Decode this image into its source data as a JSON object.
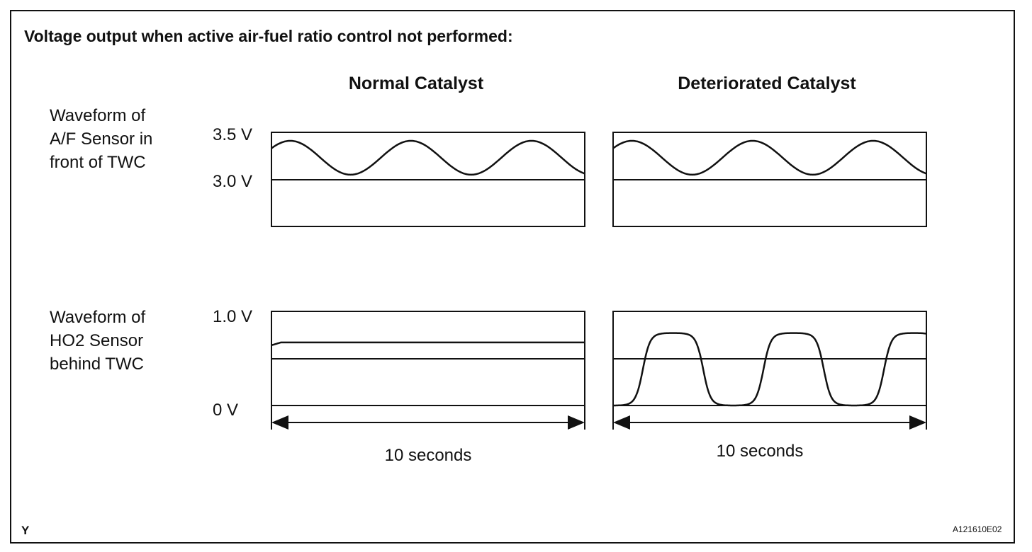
{
  "title": "Voltage output when active air-fuel ratio control not performed:",
  "columns": {
    "normal": "Normal Catalyst",
    "deteriorated": "Deteriorated Catalyst"
  },
  "rows": {
    "af_sensor": [
      "Waveform of",
      "A/F Sensor in",
      "front of TWC"
    ],
    "ho2_sensor": [
      "Waveform of",
      "HO2 Sensor",
      "behind TWC"
    ]
  },
  "voltage_labels": {
    "af_top": "3.5 V",
    "af_ref": "3.0 V",
    "ho2_top": "1.0 V",
    "ho2_bottom": "0 V"
  },
  "duration": {
    "normal": "10 seconds",
    "deteriorated": "10 seconds"
  },
  "footer": {
    "left_code": "Y",
    "figure_id": "A121610E02"
  },
  "chart_data": [
    {
      "type": "line",
      "panel": "af-normal",
      "x_range_seconds": [
        0,
        10
      ],
      "ylim": [
        2.5,
        3.5
      ],
      "reference_line": 3.0,
      "series": [
        {
          "shape": "sine",
          "mean": 3.23,
          "amplitude": 0.18,
          "period_seconds": 3.85,
          "x_start": 0,
          "x_end": 10
        }
      ]
    },
    {
      "type": "line",
      "panel": "af-deteriorated",
      "x_range_seconds": [
        0,
        10
      ],
      "ylim": [
        2.5,
        3.5
      ],
      "reference_line": 3.0,
      "series": [
        {
          "shape": "sine",
          "mean": 3.23,
          "amplitude": 0.18,
          "period_seconds": 3.85,
          "x_start": 0,
          "x_end": 10
        }
      ]
    },
    {
      "type": "line",
      "panel": "ho2-normal",
      "x_range_seconds": [
        0,
        10
      ],
      "ylim": [
        0,
        1.0
      ],
      "reference_line": 0.5,
      "series": [
        {
          "shape": "flat",
          "level": 0.67,
          "x_start": 0,
          "x_end": 10
        }
      ]
    },
    {
      "type": "line",
      "panel": "ho2-deteriorated",
      "x_range_seconds": [
        0,
        10
      ],
      "ylim": [
        0,
        1.0
      ],
      "reference_line": 0.5,
      "series": [
        {
          "shape": "square-ish",
          "low": 0.0,
          "high": 0.77,
          "period_seconds": 3.85,
          "x_start": 0,
          "x_end": 10
        }
      ]
    }
  ]
}
